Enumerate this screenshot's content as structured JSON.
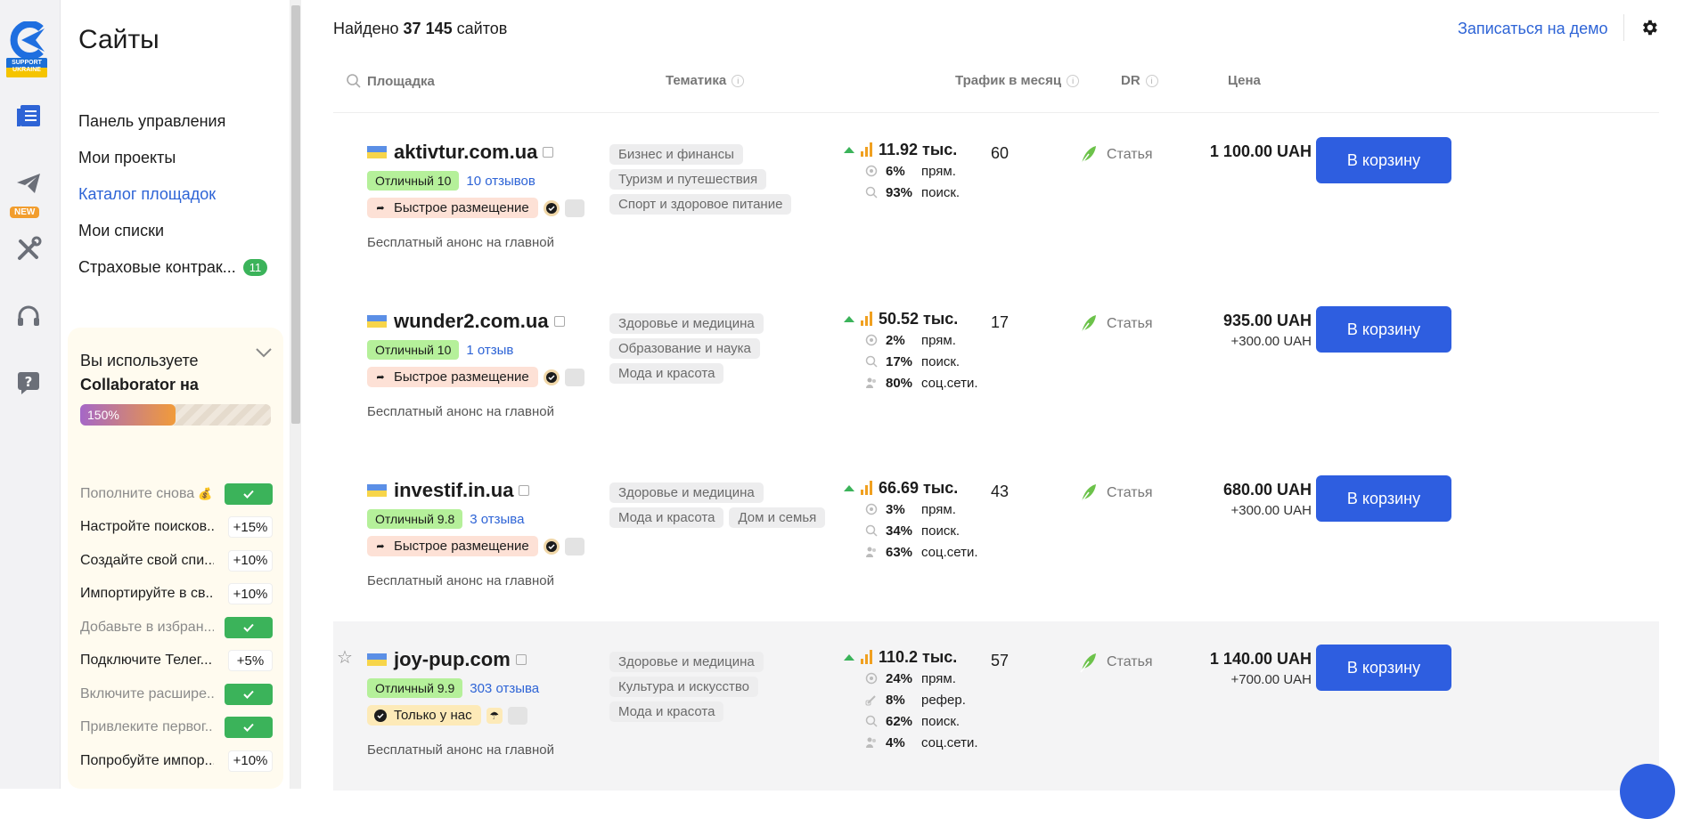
{
  "rail": {
    "logo_badge_line1": "SUPPORT",
    "logo_badge_line2": "UKRAINE",
    "new_badge": "NEW",
    "icons": [
      "catalog-icon",
      "send-icon",
      "tools-icon",
      "headset-icon",
      "help-icon"
    ]
  },
  "sidebar": {
    "title": "Сайты",
    "nav": [
      {
        "label": "Панель управления",
        "active": false
      },
      {
        "label": "Мои проекты",
        "active": false
      },
      {
        "label": "Каталог площадок",
        "active": true
      },
      {
        "label": "Мои списки",
        "active": false
      },
      {
        "label": "Страховые контрак...",
        "active": false,
        "badge": "11"
      }
    ],
    "promo": {
      "line1": "Вы используете",
      "line2": "Collaborator на",
      "progress_label": "150%",
      "progress_fraction": 0.5,
      "tasks": [
        {
          "label": "Пополните снова",
          "done": true,
          "emoji": true
        },
        {
          "label": "Настройте поисков...",
          "done": false,
          "bonus": "+15%"
        },
        {
          "label": "Создайте свой спи...",
          "done": false,
          "bonus": "+10%"
        },
        {
          "label": "Импортируйте в св...",
          "done": false,
          "bonus": "+10%"
        },
        {
          "label": "Добавьте в избран...",
          "done": true
        },
        {
          "label": "Подключите Телег...",
          "done": false,
          "bonus": "+5%"
        },
        {
          "label": "Включите расшире...",
          "done": true
        },
        {
          "label": "Привлеките первог...",
          "done": true
        },
        {
          "label": "Попробуйте импор...",
          "done": false,
          "bonus": "+10%"
        }
      ]
    }
  },
  "main": {
    "found_prefix": "Найдено",
    "found_count": "37 145",
    "found_suffix": "сайтов",
    "demo_link": "Записаться на демо",
    "headers": {
      "site": "Площадка",
      "topic": "Тематика",
      "traffic": "Трафик в месяц",
      "dr": "DR",
      "price": "Цена"
    },
    "rows": [
      {
        "domain": "aktivtur.com.ua",
        "rating": "Отличный 10",
        "reviews": "10 отзывов",
        "tag": "Быстрое размещение",
        "tag_kind": "fast",
        "announce": "Бесплатный анонс на главной",
        "topics": [
          "Бизнес и финансы",
          "Туризм и путешествия",
          "Спорт и здоровое питание"
        ],
        "traffic": "11.92 тыс.",
        "breakdown": [
          {
            "icon": "direct",
            "pct": "6%",
            "label": "прям."
          },
          {
            "icon": "search",
            "pct": "93%",
            "label": "поиск."
          }
        ],
        "dr": "60",
        "type": "Статья",
        "price": "1 100.00 UAH",
        "extra": "",
        "cart": "В корзину",
        "highlight": false
      },
      {
        "domain": "wunder2.com.ua",
        "rating": "Отличный 10",
        "reviews": "1 отзыв",
        "tag": "Быстрое размещение",
        "tag_kind": "fast",
        "announce": "Бесплатный анонс на главной",
        "topics": [
          "Здоровье и медицина",
          "Образование и наука",
          "Мода и красота"
        ],
        "traffic": "50.52 тыс.",
        "breakdown": [
          {
            "icon": "direct",
            "pct": "2%",
            "label": "прям."
          },
          {
            "icon": "search",
            "pct": "17%",
            "label": "поиск."
          },
          {
            "icon": "social",
            "pct": "80%",
            "label": "соц.сети."
          }
        ],
        "dr": "17",
        "type": "Статья",
        "price": "935.00 UAH",
        "extra": "+300.00 UAH",
        "cart": "В корзину",
        "highlight": false
      },
      {
        "domain": "investif.in.ua",
        "rating": "Отличный 9.8",
        "reviews": "3 отзыва",
        "tag": "Быстрое размещение",
        "tag_kind": "fast",
        "announce": "Бесплатный анонс на главной",
        "topics": [
          "Здоровье и медицина",
          "Мода и красота",
          "Дом и семья"
        ],
        "traffic": "66.69 тыс.",
        "breakdown": [
          {
            "icon": "direct",
            "pct": "3%",
            "label": "прям."
          },
          {
            "icon": "search",
            "pct": "34%",
            "label": "поиск."
          },
          {
            "icon": "social",
            "pct": "63%",
            "label": "соц.сети."
          }
        ],
        "dr": "43",
        "type": "Статья",
        "price": "680.00 UAH",
        "extra": "+300.00 UAH",
        "cart": "В корзину",
        "highlight": false
      },
      {
        "domain": "joy-pup.com",
        "rating": "Отличный 9.9",
        "reviews": "303 отзыва",
        "tag": "Только у нас",
        "tag_kind": "exclusive",
        "announce": "Бесплатный анонс на главной",
        "topics": [
          "Здоровье и медицина",
          "Культура и искусство",
          "Мода и красота"
        ],
        "traffic": "110.2 тыс.",
        "breakdown": [
          {
            "icon": "direct",
            "pct": "24%",
            "label": "прям."
          },
          {
            "icon": "referral",
            "pct": "8%",
            "label": "рефер."
          },
          {
            "icon": "search",
            "pct": "62%",
            "label": "поиск."
          },
          {
            "icon": "social",
            "pct": "4%",
            "label": "соц.сети."
          }
        ],
        "dr": "57",
        "type": "Статья",
        "price": "1 140.00 UAH",
        "extra": "+700.00 UAH",
        "cart": "В корзину",
        "highlight": true
      }
    ]
  },
  "colors": {
    "accent": "#2e64d6",
    "button": "#2e5ee0",
    "green": "#3bb35a",
    "rating": "#b5f09a"
  }
}
